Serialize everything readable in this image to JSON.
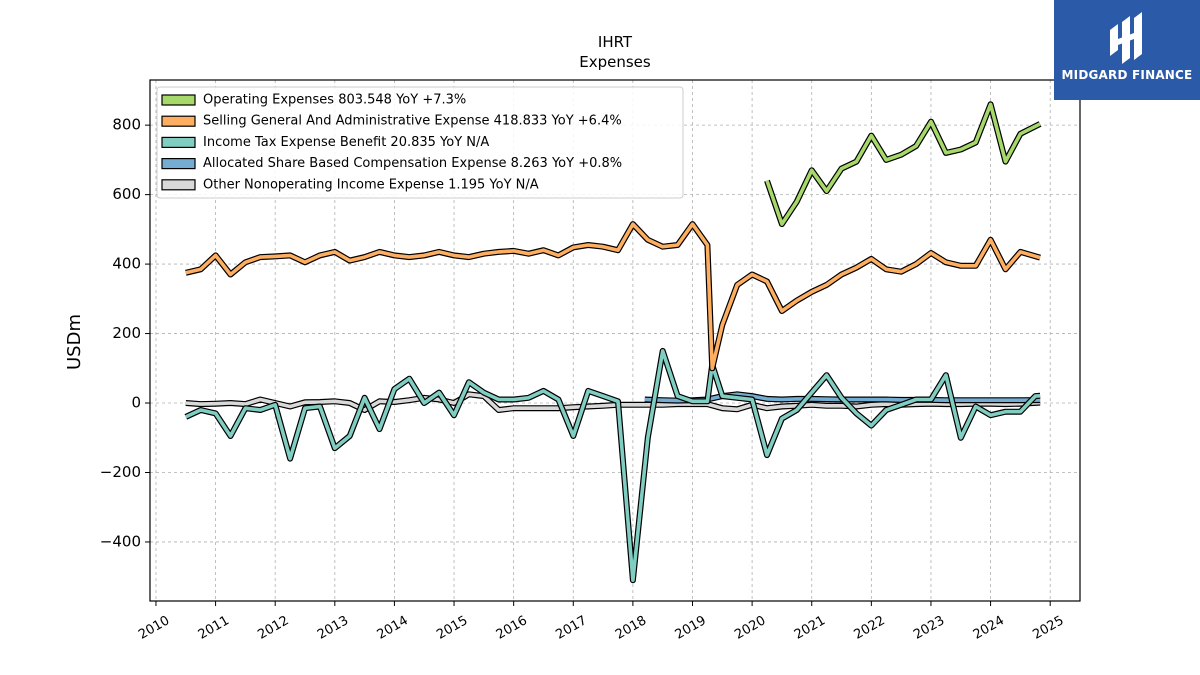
{
  "chart_data": {
    "type": "line",
    "title": "IHRT",
    "subtitle": "Expenses",
    "ylabel": "USDm",
    "xlabel": "",
    "xlim": [
      2009.9,
      2025.5
    ],
    "ylim": [
      -570,
      930
    ],
    "yticks": [
      -400,
      -200,
      0,
      200,
      400,
      600,
      800
    ],
    "ytick_labels": [
      "−400",
      "−200",
      "0",
      "200",
      "400",
      "600",
      "800"
    ],
    "xticks": [
      2010,
      2011,
      2012,
      2013,
      2014,
      2015,
      2016,
      2017,
      2018,
      2019,
      2020,
      2021,
      2022,
      2023,
      2024,
      2025
    ],
    "xtick_labels": [
      "2010",
      "2011",
      "2012",
      "2013",
      "2014",
      "2015",
      "2016",
      "2017",
      "2018",
      "2019",
      "2020",
      "2021",
      "2022",
      "2023",
      "2024",
      "2025"
    ],
    "grid": true,
    "legend_position": "top-left",
    "series": [
      {
        "name": "Operating Expenses  803.548 YoY +7.3%",
        "color": "#a6d96a",
        "points": [
          [
            2020.25,
            640
          ],
          [
            2020.5,
            515
          ],
          [
            2020.75,
            580
          ],
          [
            2021.0,
            670
          ],
          [
            2021.25,
            610
          ],
          [
            2021.5,
            675
          ],
          [
            2021.75,
            695
          ],
          [
            2022.0,
            770
          ],
          [
            2022.25,
            700
          ],
          [
            2022.5,
            715
          ],
          [
            2022.75,
            740
          ],
          [
            2023.0,
            810
          ],
          [
            2023.25,
            720
          ],
          [
            2023.5,
            730
          ],
          [
            2023.75,
            750
          ],
          [
            2024.0,
            860
          ],
          [
            2024.25,
            695
          ],
          [
            2024.5,
            775
          ],
          [
            2024.83,
            803.5
          ]
        ]
      },
      {
        "name": "Selling General And Administrative Expense  418.833 YoY +6.4%",
        "color": "#fdae61",
        "points": [
          [
            2010.5,
            375
          ],
          [
            2010.75,
            385
          ],
          [
            2011.0,
            425
          ],
          [
            2011.25,
            370
          ],
          [
            2011.5,
            405
          ],
          [
            2011.75,
            420
          ],
          [
            2012.0,
            422
          ],
          [
            2012.25,
            425
          ],
          [
            2012.5,
            405
          ],
          [
            2012.75,
            425
          ],
          [
            2013.0,
            435
          ],
          [
            2013.25,
            410
          ],
          [
            2013.5,
            420
          ],
          [
            2013.75,
            435
          ],
          [
            2014.0,
            425
          ],
          [
            2014.25,
            420
          ],
          [
            2014.5,
            425
          ],
          [
            2014.75,
            435
          ],
          [
            2015.0,
            425
          ],
          [
            2015.25,
            420
          ],
          [
            2015.5,
            430
          ],
          [
            2015.75,
            435
          ],
          [
            2016.0,
            438
          ],
          [
            2016.25,
            430
          ],
          [
            2016.5,
            440
          ],
          [
            2016.75,
            425
          ],
          [
            2017.0,
            448
          ],
          [
            2017.25,
            455
          ],
          [
            2017.5,
            450
          ],
          [
            2017.75,
            440
          ],
          [
            2018.0,
            515
          ],
          [
            2018.25,
            470
          ],
          [
            2018.5,
            450
          ],
          [
            2018.75,
            455
          ],
          [
            2019.0,
            515
          ],
          [
            2019.25,
            455
          ],
          [
            2019.33,
            100
          ],
          [
            2019.5,
            225
          ],
          [
            2019.75,
            340
          ],
          [
            2020.0,
            370
          ],
          [
            2020.25,
            350
          ],
          [
            2020.5,
            265
          ],
          [
            2020.75,
            295
          ],
          [
            2021.0,
            320
          ],
          [
            2021.25,
            340
          ],
          [
            2021.5,
            370
          ],
          [
            2021.75,
            390
          ],
          [
            2022.0,
            415
          ],
          [
            2022.25,
            385
          ],
          [
            2022.5,
            378
          ],
          [
            2022.75,
            400
          ],
          [
            2023.0,
            432
          ],
          [
            2023.25,
            405
          ],
          [
            2023.5,
            395
          ],
          [
            2023.75,
            395
          ],
          [
            2024.0,
            470
          ],
          [
            2024.25,
            385
          ],
          [
            2024.5,
            435
          ],
          [
            2024.83,
            418.8
          ]
        ]
      },
      {
        "name": "Income Tax Expense Benefit  20.835 YoY N/A",
        "color": "#80cdc1",
        "points": [
          [
            2010.5,
            -40
          ],
          [
            2010.75,
            -20
          ],
          [
            2011.0,
            -30
          ],
          [
            2011.25,
            -95
          ],
          [
            2011.5,
            -15
          ],
          [
            2011.75,
            -20
          ],
          [
            2012.0,
            -5
          ],
          [
            2012.25,
            -160
          ],
          [
            2012.5,
            -15
          ],
          [
            2012.75,
            -10
          ],
          [
            2013.0,
            -130
          ],
          [
            2013.25,
            -95
          ],
          [
            2013.5,
            15
          ],
          [
            2013.75,
            -75
          ],
          [
            2014.0,
            40
          ],
          [
            2014.25,
            70
          ],
          [
            2014.5,
            0
          ],
          [
            2014.75,
            30
          ],
          [
            2015.0,
            -35
          ],
          [
            2015.25,
            60
          ],
          [
            2015.5,
            30
          ],
          [
            2015.75,
            10
          ],
          [
            2016.0,
            10
          ],
          [
            2016.25,
            15
          ],
          [
            2016.5,
            35
          ],
          [
            2016.75,
            10
          ],
          [
            2017.0,
            -95
          ],
          [
            2017.25,
            35
          ],
          [
            2017.5,
            20
          ],
          [
            2017.75,
            5
          ],
          [
            2018.0,
            -510
          ],
          [
            2018.25,
            -100
          ],
          [
            2018.5,
            150
          ],
          [
            2018.75,
            20
          ],
          [
            2019.0,
            5
          ],
          [
            2019.25,
            5
          ],
          [
            2019.33,
            110
          ],
          [
            2019.5,
            20
          ],
          [
            2019.75,
            15
          ],
          [
            2020.0,
            10
          ],
          [
            2020.25,
            -150
          ],
          [
            2020.5,
            -45
          ],
          [
            2020.75,
            -20
          ],
          [
            2021.0,
            30
          ],
          [
            2021.25,
            80
          ],
          [
            2021.5,
            15
          ],
          [
            2021.75,
            -30
          ],
          [
            2022.0,
            -65
          ],
          [
            2022.25,
            -20
          ],
          [
            2022.5,
            -5
          ],
          [
            2022.75,
            10
          ],
          [
            2023.0,
            10
          ],
          [
            2023.25,
            80
          ],
          [
            2023.5,
            -100
          ],
          [
            2023.75,
            -10
          ],
          [
            2024.0,
            -35
          ],
          [
            2024.25,
            -25
          ],
          [
            2024.5,
            -25
          ],
          [
            2024.75,
            20
          ],
          [
            2024.83,
            20.8
          ]
        ]
      },
      {
        "name": "Allocated Share Based Compensation Expense  8.263 YoY +0.8%",
        "color": "#74add1",
        "points": [
          [
            2018.2,
            10
          ],
          [
            2018.5,
            8
          ],
          [
            2018.75,
            7
          ],
          [
            2019.0,
            8
          ],
          [
            2019.25,
            10
          ],
          [
            2019.5,
            20
          ],
          [
            2019.75,
            25
          ],
          [
            2020.0,
            20
          ],
          [
            2020.25,
            12
          ],
          [
            2020.5,
            10
          ],
          [
            2020.75,
            12
          ],
          [
            2021.0,
            12
          ],
          [
            2021.25,
            11
          ],
          [
            2021.5,
            10
          ],
          [
            2021.75,
            10
          ],
          [
            2022.0,
            10
          ],
          [
            2022.25,
            10
          ],
          [
            2022.5,
            9
          ],
          [
            2022.75,
            9
          ],
          [
            2023.0,
            9
          ],
          [
            2023.25,
            8
          ],
          [
            2023.5,
            8
          ],
          [
            2023.75,
            8
          ],
          [
            2024.0,
            8
          ],
          [
            2024.25,
            8
          ],
          [
            2024.5,
            8
          ],
          [
            2024.83,
            8.3
          ]
        ]
      },
      {
        "name": "Other Nonoperating Income Expense  1.195 YoY N/A",
        "color": "#d9d9d9",
        "points": [
          [
            2010.5,
            0
          ],
          [
            2010.75,
            -3
          ],
          [
            2011.0,
            -2
          ],
          [
            2011.25,
            0
          ],
          [
            2011.5,
            -3
          ],
          [
            2011.75,
            10
          ],
          [
            2012.0,
            0
          ],
          [
            2012.25,
            -10
          ],
          [
            2012.5,
            2
          ],
          [
            2012.75,
            3
          ],
          [
            2013.0,
            5
          ],
          [
            2013.25,
            0
          ],
          [
            2013.5,
            -20
          ],
          [
            2013.75,
            5
          ],
          [
            2014.0,
            3
          ],
          [
            2014.25,
            8
          ],
          [
            2014.5,
            15
          ],
          [
            2014.75,
            10
          ],
          [
            2015.0,
            0
          ],
          [
            2015.25,
            25
          ],
          [
            2015.5,
            20
          ],
          [
            2015.75,
            -20
          ],
          [
            2016.0,
            -15
          ],
          [
            2016.25,
            -15
          ],
          [
            2016.5,
            -15
          ],
          [
            2016.75,
            -15
          ],
          [
            2017.0,
            -12
          ],
          [
            2017.25,
            -10
          ],
          [
            2017.5,
            -8
          ],
          [
            2017.75,
            -5
          ],
          [
            2018.0,
            -5
          ],
          [
            2018.25,
            -5
          ],
          [
            2018.5,
            -5
          ],
          [
            2018.75,
            -3
          ],
          [
            2019.0,
            -3
          ],
          [
            2019.25,
            -3
          ],
          [
            2019.5,
            -15
          ],
          [
            2019.75,
            -18
          ],
          [
            2020.0,
            -5
          ],
          [
            2020.25,
            -15
          ],
          [
            2020.5,
            -10
          ],
          [
            2020.75,
            -8
          ],
          [
            2021.0,
            -5
          ],
          [
            2021.25,
            -8
          ],
          [
            2021.5,
            -8
          ],
          [
            2021.75,
            -10
          ],
          [
            2022.0,
            -5
          ],
          [
            2022.25,
            -3
          ],
          [
            2022.5,
            -5
          ],
          [
            2022.75,
            -3
          ],
          [
            2023.0,
            -2
          ],
          [
            2023.25,
            -3
          ],
          [
            2023.5,
            -3
          ],
          [
            2023.75,
            -2
          ],
          [
            2024.0,
            -2
          ],
          [
            2024.25,
            -3
          ],
          [
            2024.5,
            -2
          ],
          [
            2024.83,
            1.2
          ]
        ]
      }
    ]
  },
  "logo": {
    "text": "MIDGARD FINANCE"
  }
}
